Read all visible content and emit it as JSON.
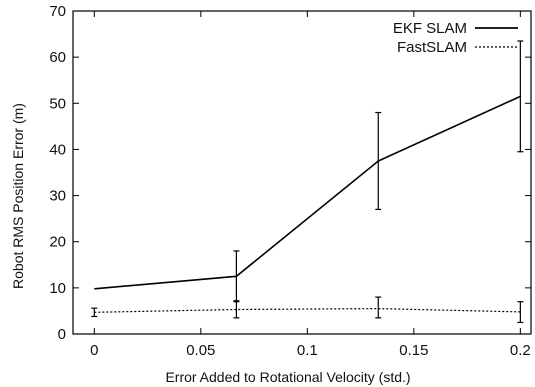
{
  "chart_data": {
    "type": "line",
    "title": "",
    "xlabel": "Error Added to Rotational Velocity (std.)",
    "ylabel": "Robot RMS Position Error (m)",
    "xlim": [
      -0.01,
      0.205
    ],
    "ylim": [
      0,
      70
    ],
    "xticks": [
      0,
      0.05,
      0.1,
      0.15,
      0.2
    ],
    "xtick_labels": [
      "0",
      "0.05",
      "0.1",
      "0.15",
      "0.2"
    ],
    "yticks": [
      0,
      10,
      20,
      30,
      40,
      50,
      60,
      70
    ],
    "ytick_labels": [
      "0",
      "10",
      "20",
      "30",
      "40",
      "50",
      "60",
      "70"
    ],
    "grid": false,
    "legend_position": "top-right",
    "series": [
      {
        "name": "EKF SLAM",
        "style": "solid",
        "color": "#000000",
        "x": [
          0,
          0.0667,
          0.1333,
          0.2
        ],
        "y": [
          9.8,
          12.5,
          37.5,
          51.5
        ],
        "err_low": [
          null,
          7,
          27,
          39.5
        ],
        "err_high": [
          null,
          18,
          48,
          63.5
        ]
      },
      {
        "name": "FastSLAM",
        "style": "dotted",
        "color": "#000000",
        "x": [
          0,
          0.0667,
          0.1333,
          0.2
        ],
        "y": [
          4.7,
          5.3,
          5.5,
          4.8
        ],
        "err_low": [
          3.8,
          3.5,
          3.5,
          2.5
        ],
        "err_high": [
          5.6,
          7.2,
          8.0,
          7.0
        ]
      }
    ]
  }
}
